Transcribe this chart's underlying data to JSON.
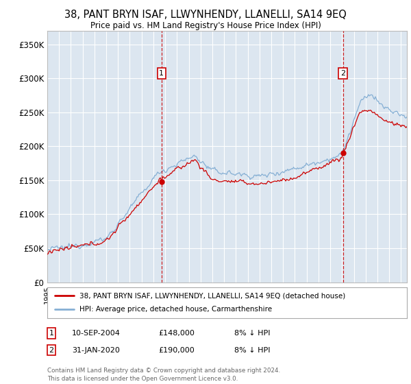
{
  "title": "38, PANT BRYN ISAF, LLWYNHENDY, LLANELLI, SA14 9EQ",
  "subtitle": "Price paid vs. HM Land Registry's House Price Index (HPI)",
  "background_color": "#dce6f0",
  "fig_bg_color": "#ffffff",
  "ylim": [
    0,
    370000
  ],
  "yticks": [
    0,
    50000,
    100000,
    150000,
    200000,
    250000,
    300000,
    350000
  ],
  "ytick_labels": [
    "£0",
    "£50K",
    "£100K",
    "£150K",
    "£200K",
    "£250K",
    "£300K",
    "£350K"
  ],
  "sale1_date": 2004.69,
  "sale1_price": 148000,
  "sale2_date": 2020.08,
  "sale2_price": 190000,
  "legend_entry1": "38, PANT BRYN ISAF, LLWYNHENDY, LLANELLI, SA14 9EQ (detached house)",
  "legend_entry2": "HPI: Average price, detached house, Carmarthenshire",
  "copyright": "Contains HM Land Registry data © Crown copyright and database right 2024.\nThis data is licensed under the Open Government Licence v3.0.",
  "line_color_sold": "#cc0000",
  "line_color_hpi": "#85afd4",
  "grid_color": "#ffffff",
  "xlim_left": 1995.0,
  "xlim_right": 2025.5
}
